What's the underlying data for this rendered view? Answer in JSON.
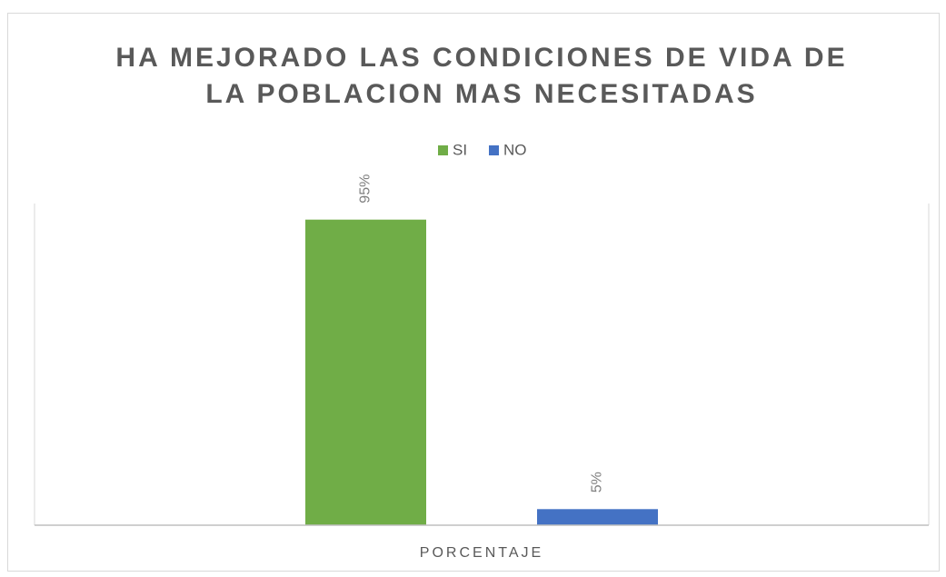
{
  "chart_data": {
    "type": "bar",
    "title": "HA MEJORADO LAS CONDICIONES DE VIDA DE LA POBLACION MAS NECESITADAS",
    "categories": [
      "PORCENTAJE"
    ],
    "series": [
      {
        "name": "SI",
        "color": "#70ad47",
        "values": [
          95
        ],
        "value_labels": [
          "95%"
        ]
      },
      {
        "name": "NO",
        "color": "#4472c4",
        "values": [
          5
        ],
        "value_labels": [
          "5%"
        ]
      }
    ],
    "ylim": [
      0,
      100
    ],
    "legend": "top"
  }
}
